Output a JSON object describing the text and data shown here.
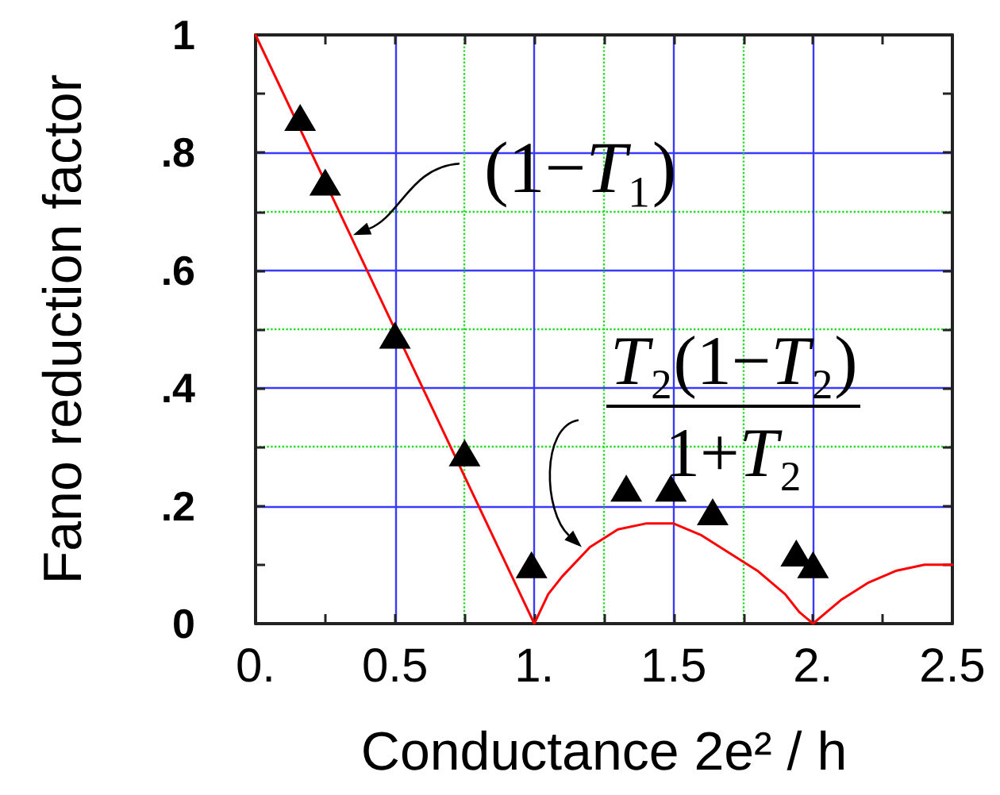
{
  "chart_data": {
    "type": "scatter",
    "xlabel": "Conductance 2e² / h",
    "ylabel": "Fano reduction factor",
    "xlim": [
      0,
      2.5
    ],
    "ylim": [
      0,
      1
    ],
    "xticks": [
      {
        "value": 0,
        "label": "0."
      },
      {
        "value": 0.25,
        "label": null
      },
      0.5,
      {
        "value": 0.75,
        "label": null
      },
      {
        "value": 1,
        "label": "1."
      },
      {
        "value": 1.25,
        "label": null
      },
      1.5,
      {
        "value": 1.75,
        "label": null
      },
      {
        "value": 2,
        "label": "2."
      },
      {
        "value": 2.25,
        "label": null
      },
      2.5
    ],
    "yticks": [
      0,
      {
        "value": 0.1,
        "label": null
      },
      {
        "value": 0.2,
        "label": ".2"
      },
      {
        "value": 0.3,
        "label": null
      },
      {
        "value": 0.4,
        "label": ".4"
      },
      {
        "value": 0.5,
        "label": null
      },
      {
        "value": 0.6,
        "label": ".6"
      },
      {
        "value": 0.7,
        "label": null
      },
      {
        "value": 0.8,
        "label": ".8"
      },
      {
        "value": 0.9,
        "label": null
      },
      1
    ],
    "grid": true,
    "series": [
      {
        "type": "line",
        "color": "#ff0000",
        "marker": "none",
        "x": [
          0,
          1,
          1.05,
          1.1,
          1.2,
          1.3,
          1.4,
          1.5,
          1.6,
          1.7,
          1.8,
          1.9,
          1.95,
          2,
          2.05,
          2.1,
          2.2,
          2.3,
          2.4,
          2.5
        ],
        "values": [
          1,
          0,
          0.05,
          0.08,
          0.13,
          0.16,
          0.17,
          0.17,
          0.15,
          0.12,
          0.09,
          0.05,
          0.02,
          0,
          0.02,
          0.04,
          0.07,
          0.09,
          0.1,
          0.1
        ]
      },
      {
        "color": "#000000",
        "marker": "triangle",
        "x": [
          0.16,
          0.25,
          0.5,
          0.75,
          0.99,
          1.33,
          1.49,
          1.64,
          1.94,
          2.0
        ],
        "values": [
          0.86,
          0.75,
          0.49,
          0.29,
          0.1,
          0.23,
          0.23,
          0.19,
          0.12,
          0.1
        ]
      }
    ],
    "annotations": [
      {
        "text": "(1−T₁)",
        "x": 0.35,
        "y": 0.66
      },
      {
        "text": "T₂(1−T₂)",
        "x": 1.17,
        "y": 0.13
      },
      "1+T₂"
    ]
  }
}
